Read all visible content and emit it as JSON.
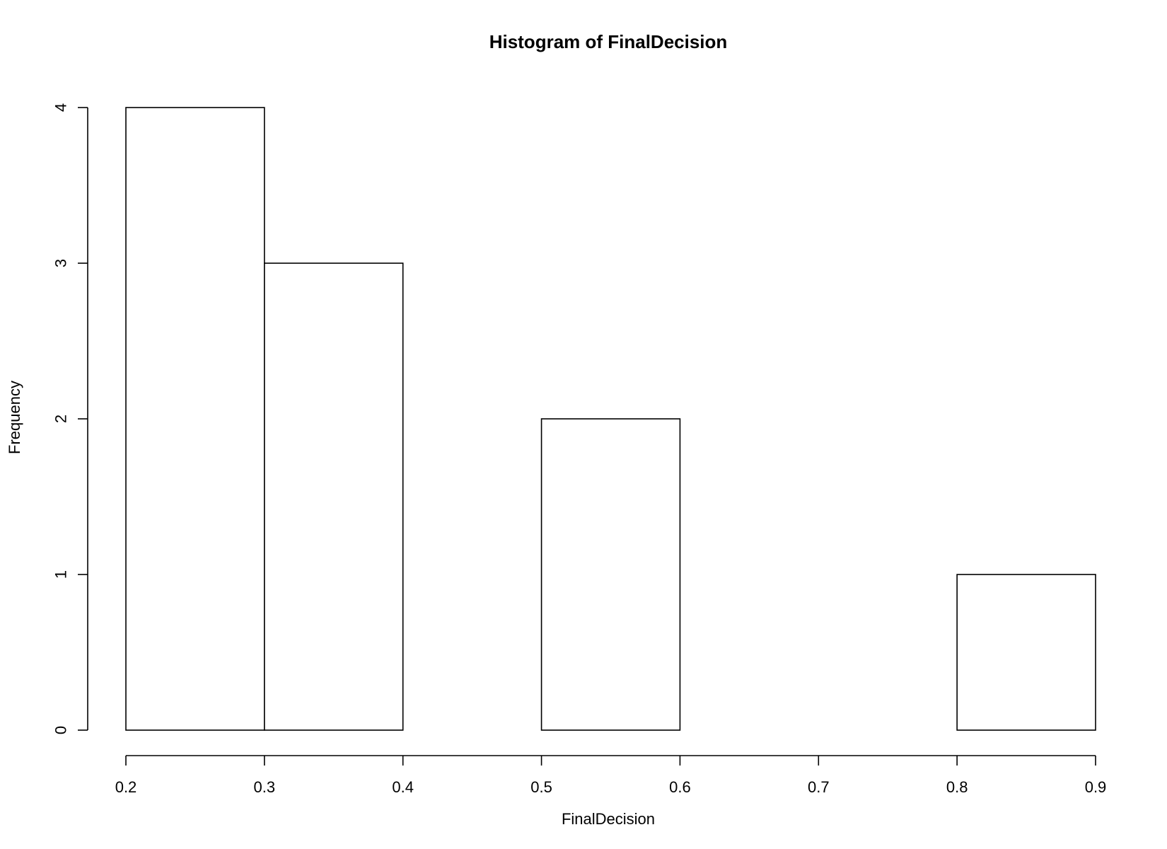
{
  "chart_data": {
    "type": "bar",
    "title": "Histogram of FinalDecision",
    "xlabel": "FinalDecision",
    "ylabel": "Frequency",
    "bins": [
      {
        "start": 0.2,
        "end": 0.3,
        "count": 4
      },
      {
        "start": 0.3,
        "end": 0.4,
        "count": 3
      },
      {
        "start": 0.4,
        "end": 0.5,
        "count": 0
      },
      {
        "start": 0.5,
        "end": 0.6,
        "count": 2
      },
      {
        "start": 0.6,
        "end": 0.7,
        "count": 0
      },
      {
        "start": 0.7,
        "end": 0.8,
        "count": 0
      },
      {
        "start": 0.8,
        "end": 0.9,
        "count": 1
      }
    ],
    "xticks": [
      "0.2",
      "0.3",
      "0.4",
      "0.5",
      "0.6",
      "0.7",
      "0.8",
      "0.9"
    ],
    "xtick_values": [
      0.2,
      0.3,
      0.4,
      0.5,
      0.6,
      0.7,
      0.8,
      0.9
    ],
    "yticks": [
      "0",
      "1",
      "2",
      "3",
      "4"
    ],
    "ytick_values": [
      0,
      1,
      2,
      3,
      4
    ],
    "xlim": [
      0.2,
      0.9
    ],
    "ylim": [
      0,
      4
    ],
    "grid": false,
    "colors": {
      "bar_fill": "#ffffff",
      "bar_stroke": "#000000"
    }
  }
}
